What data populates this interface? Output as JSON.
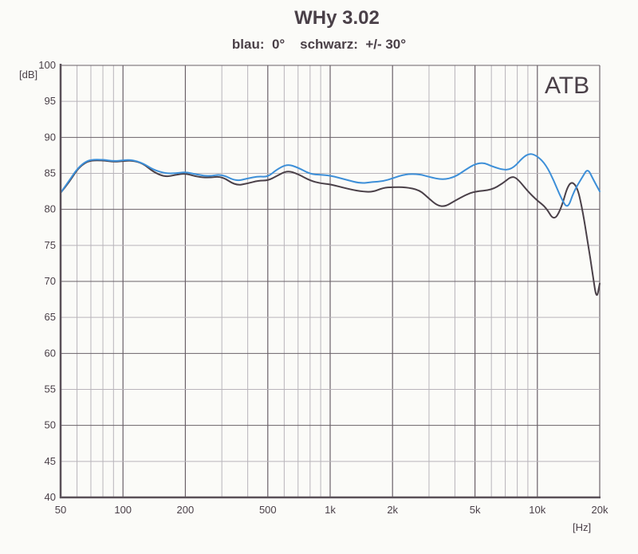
{
  "header": {
    "title": "WHy 3.02",
    "subtitle": "blau:  0°    schwarz:  +/- 30°"
  },
  "badge": "ATB",
  "axes": {
    "y_unit": "[dB]",
    "x_unit": "[Hz]"
  },
  "colors": {
    "background": "#fbfbf8",
    "grid": "#b8b4ba",
    "grid_major": "#6a6068",
    "axis": "#5a5058",
    "series_0deg": "#3d8fd8",
    "series_30deg": "#4a4048"
  },
  "chart_data": {
    "type": "line",
    "title": "WHy 3.02",
    "subtitle": "blau: 0°    schwarz: +/- 30°",
    "xlabel": "[Hz]",
    "ylabel": "[dB]",
    "xscale": "log",
    "xlim": [
      50,
      20000
    ],
    "ylim": [
      40,
      100
    ],
    "grid": true,
    "legend": "in subtitle (blau = 0°, schwarz = +/- 30°)",
    "annotation": "ATB",
    "x_ticks": [
      {
        "value": 50,
        "label": "50"
      },
      {
        "value": 100,
        "label": "100"
      },
      {
        "value": 200,
        "label": "200"
      },
      {
        "value": 500,
        "label": "500"
      },
      {
        "value": 1000,
        "label": "1k"
      },
      {
        "value": 2000,
        "label": "2k"
      },
      {
        "value": 5000,
        "label": "5k"
      },
      {
        "value": 10000,
        "label": "10k"
      },
      {
        "value": 20000,
        "label": "20k"
      }
    ],
    "y_ticks": [
      100,
      95,
      90,
      85,
      80,
      75,
      70,
      65,
      60,
      55,
      50,
      45,
      40
    ],
    "series": [
      {
        "name": "blau: 0°",
        "color": "#3d8fd8",
        "points": [
          [
            50,
            82.3
          ],
          [
            55,
            84.0
          ],
          [
            60,
            85.6
          ],
          [
            65,
            86.5
          ],
          [
            70,
            86.9
          ],
          [
            80,
            86.9
          ],
          [
            90,
            86.7
          ],
          [
            100,
            86.8
          ],
          [
            110,
            86.9
          ],
          [
            125,
            86.4
          ],
          [
            140,
            85.5
          ],
          [
            160,
            85.0
          ],
          [
            180,
            85.0
          ],
          [
            200,
            85.2
          ],
          [
            230,
            84.8
          ],
          [
            260,
            84.6
          ],
          [
            300,
            84.9
          ],
          [
            350,
            83.9
          ],
          [
            400,
            84.3
          ],
          [
            450,
            84.6
          ],
          [
            500,
            84.5
          ],
          [
            550,
            85.5
          ],
          [
            620,
            86.3
          ],
          [
            700,
            85.8
          ],
          [
            800,
            84.9
          ],
          [
            900,
            84.8
          ],
          [
            1000,
            84.7
          ],
          [
            1200,
            84.1
          ],
          [
            1400,
            83.6
          ],
          [
            1600,
            83.8
          ],
          [
            1800,
            83.9
          ],
          [
            2000,
            84.3
          ],
          [
            2300,
            84.9
          ],
          [
            2700,
            84.9
          ],
          [
            3000,
            84.5
          ],
          [
            3500,
            84.1
          ],
          [
            4000,
            84.5
          ],
          [
            4500,
            85.5
          ],
          [
            5000,
            86.3
          ],
          [
            5500,
            86.5
          ],
          [
            6000,
            86.0
          ],
          [
            7000,
            85.4
          ],
          [
            7700,
            85.8
          ],
          [
            8500,
            87.2
          ],
          [
            9200,
            87.8
          ],
          [
            10000,
            87.4
          ],
          [
            11000,
            86.2
          ],
          [
            12000,
            84.0
          ],
          [
            13000,
            81.6
          ],
          [
            14000,
            80.0
          ],
          [
            15000,
            82.5
          ],
          [
            16500,
            84.5
          ],
          [
            17500,
            85.7
          ],
          [
            18500,
            84.3
          ],
          [
            20000,
            82.5
          ]
        ]
      },
      {
        "name": "schwarz: +/- 30°",
        "color": "#4a4048",
        "points": [
          [
            50,
            82.3
          ],
          [
            55,
            83.8
          ],
          [
            60,
            85.5
          ],
          [
            65,
            86.4
          ],
          [
            70,
            86.8
          ],
          [
            80,
            86.8
          ],
          [
            90,
            86.6
          ],
          [
            100,
            86.7
          ],
          [
            110,
            86.8
          ],
          [
            125,
            86.4
          ],
          [
            140,
            85.2
          ],
          [
            160,
            84.5
          ],
          [
            180,
            84.8
          ],
          [
            200,
            85.0
          ],
          [
            230,
            84.5
          ],
          [
            260,
            84.4
          ],
          [
            300,
            84.6
          ],
          [
            350,
            83.3
          ],
          [
            400,
            83.6
          ],
          [
            450,
            84.0
          ],
          [
            500,
            84.0
          ],
          [
            550,
            84.6
          ],
          [
            620,
            85.4
          ],
          [
            700,
            84.9
          ],
          [
            800,
            84.0
          ],
          [
            900,
            83.6
          ],
          [
            1000,
            83.5
          ],
          [
            1200,
            82.9
          ],
          [
            1400,
            82.5
          ],
          [
            1600,
            82.4
          ],
          [
            1800,
            83.0
          ],
          [
            2000,
            83.1
          ],
          [
            2300,
            83.1
          ],
          [
            2700,
            82.7
          ],
          [
            3000,
            81.5
          ],
          [
            3300,
            80.5
          ],
          [
            3600,
            80.4
          ],
          [
            4000,
            81.2
          ],
          [
            4500,
            82.0
          ],
          [
            5000,
            82.5
          ],
          [
            6000,
            82.7
          ],
          [
            6800,
            83.6
          ],
          [
            7500,
            84.6
          ],
          [
            8000,
            84.3
          ],
          [
            9000,
            82.5
          ],
          [
            10000,
            81.2
          ],
          [
            11000,
            80.3
          ],
          [
            12000,
            78.4
          ],
          [
            13000,
            80.0
          ],
          [
            14200,
            83.9
          ],
          [
            15500,
            83.4
          ],
          [
            16500,
            80.0
          ],
          [
            17500,
            75.5
          ],
          [
            18500,
            71.0
          ],
          [
            19300,
            67.4
          ],
          [
            20000,
            69.7
          ]
        ]
      }
    ]
  }
}
